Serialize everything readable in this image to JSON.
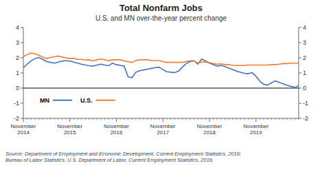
{
  "chart_data": {
    "type": "line",
    "title": "Total Nonfarm Jobs",
    "subtitle": "U.S. and MN over-the-year percent change",
    "source": "Source: Department of Employment and Economic Development, Current Employment Statistics, 2019;\nBureau of Labor Statistics, U.S. Department of Labor, Current Employment Statistics, 2019.",
    "categories": [
      "November\n2014",
      null,
      null,
      null,
      null,
      null,
      null,
      null,
      null,
      null,
      null,
      null,
      "November\n2015",
      null,
      null,
      null,
      null,
      null,
      null,
      null,
      null,
      null,
      null,
      null,
      "November\n2016",
      null,
      null,
      null,
      null,
      null,
      null,
      null,
      null,
      null,
      null,
      null,
      "November\n2017",
      null,
      null,
      null,
      null,
      null,
      null,
      null,
      null,
      null,
      null,
      null,
      "November\n2018",
      null,
      null,
      null,
      null,
      null,
      null,
      null,
      null,
      null,
      null,
      null,
      "November\n2019",
      null,
      null,
      null,
      null,
      null,
      null,
      null,
      null,
      null,
      null,
      null
    ],
    "series": [
      {
        "name": "MN",
        "color": "#4472C4",
        "values": [
          1.35,
          1.58,
          1.8,
          1.95,
          2.02,
          1.9,
          1.75,
          1.7,
          1.65,
          1.72,
          1.78,
          1.82,
          1.78,
          1.72,
          1.65,
          1.58,
          1.52,
          1.48,
          1.45,
          1.52,
          1.58,
          1.52,
          1.48,
          1.65,
          1.55,
          1.5,
          1.45,
          0.75,
          0.68,
          1.05,
          1.15,
          1.2,
          1.25,
          1.3,
          1.35,
          1.38,
          1.22,
          1.08,
          1.05,
          1.02,
          1.12,
          1.38,
          1.62,
          1.75,
          1.8,
          1.58,
          1.92,
          1.8,
          1.65,
          1.55,
          1.45,
          1.5,
          1.42,
          1.32,
          1.22,
          1.12,
          1.05,
          0.98,
          0.95,
          1.02,
          0.78,
          0.45,
          0.25,
          0.2,
          0.35,
          0.48,
          0.38,
          0.28,
          0.18,
          0.12,
          0.05,
          0.15
        ]
      },
      {
        "name": "U.S.",
        "color": "#ED7D31",
        "values": [
          2.08,
          2.22,
          2.32,
          2.27,
          2.17,
          2.05,
          1.95,
          2.02,
          2.07,
          2.12,
          2.05,
          2.0,
          1.95,
          1.97,
          1.9,
          1.9,
          1.85,
          1.87,
          1.8,
          1.87,
          1.92,
          1.87,
          1.8,
          1.87,
          1.87,
          1.87,
          1.8,
          1.75,
          1.7,
          1.82,
          1.87,
          1.87,
          1.87,
          1.82,
          1.82,
          1.82,
          1.75,
          1.7,
          1.7,
          1.7,
          1.7,
          1.7,
          1.75,
          1.8,
          1.8,
          1.65,
          1.72,
          1.72,
          1.68,
          1.62,
          1.58,
          1.6,
          1.55,
          1.55,
          1.5,
          1.5,
          1.5,
          1.5,
          1.52,
          1.52,
          1.52,
          1.52,
          1.52,
          1.52,
          1.55,
          1.55,
          1.58,
          1.62,
          1.62,
          1.65,
          1.65,
          1.65
        ]
      }
    ],
    "ylim": [
      -2,
      4
    ],
    "yticks": [
      -2,
      -1,
      0,
      1,
      2,
      3,
      4
    ],
    "y2lim": [
      -2,
      4
    ],
    "y2ticks": [
      -2,
      -1,
      0,
      1,
      2,
      3,
      4
    ],
    "grid": false,
    "legend": "lower left"
  }
}
